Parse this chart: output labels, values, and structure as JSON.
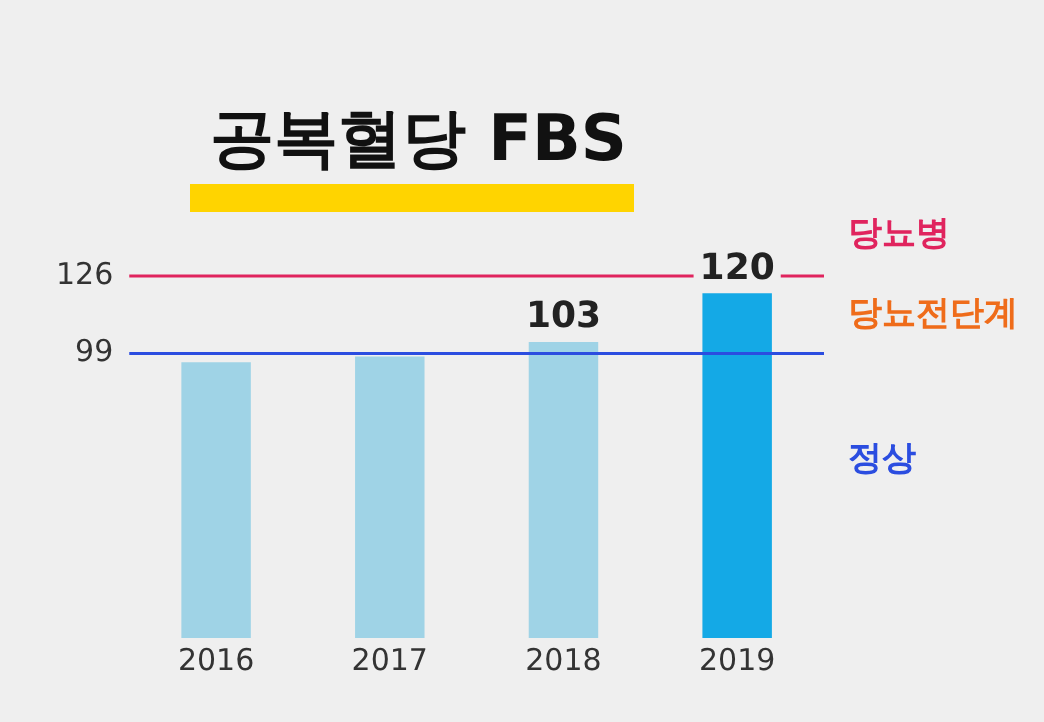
{
  "chart_data": {
    "type": "bar",
    "title": "공복혈당 FBS",
    "categories": [
      "2016",
      "2017",
      "2018",
      "2019"
    ],
    "values": [
      96,
      98,
      103,
      120
    ],
    "colors": [
      "#9fd3e6",
      "#9fd3e6",
      "#9fd3e6",
      "#14a9e6"
    ],
    "value_labels": [
      null,
      null,
      "103",
      "120"
    ],
    "ylim": [
      0,
      126
    ],
    "yticks": [
      99,
      126
    ],
    "grid": false,
    "legend": false,
    "ref_lines": [
      {
        "axis": "y",
        "value": 126,
        "label": "당뇨병",
        "color": "#e0245e"
      },
      {
        "axis": "y",
        "value": 99,
        "label": "정상",
        "color": "#2b4de0"
      }
    ],
    "annotations": [
      "당뇨전단계"
    ]
  }
}
